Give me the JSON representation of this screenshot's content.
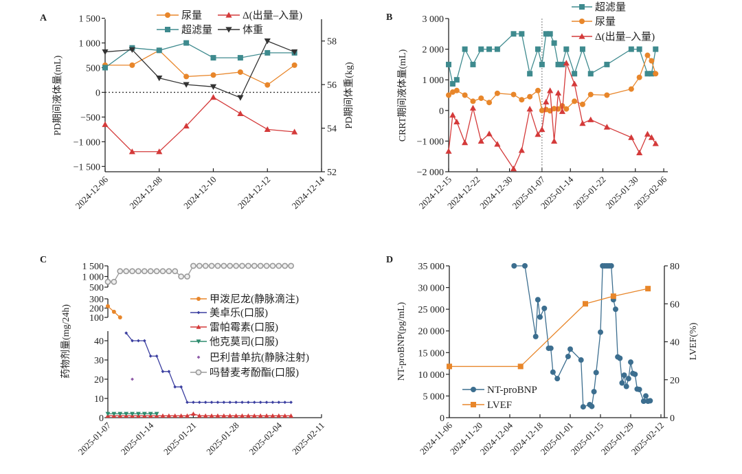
{
  "chart_data": [
    {
      "id": "A",
      "panel_label": "A",
      "type": "line",
      "ylabel": "PD期间液体量(mL)",
      "ylabel_right": "PD期间体重(kg)",
      "xlim": [
        "2024-12-06",
        "2024-12-14"
      ],
      "xticks": [
        "2024-12-06",
        "2024-12-08",
        "2024-12-10",
        "2024-12-12",
        "2024-12-14"
      ],
      "ylim": [
        -1607,
        1480
      ],
      "yticks": [
        1500,
        1000,
        500,
        0,
        -500,
        -1000,
        -1500
      ],
      "ytick_labels": [
        "1 500",
        "1 000",
        "500",
        "0",
        "−500",
        "−1 000",
        "−1 500"
      ],
      "ylim_right": [
        52,
        59
      ],
      "yticks_right": [
        52,
        54,
        56,
        58
      ],
      "ytick_right_labels": [
        "52",
        "54",
        "56",
        "58"
      ],
      "zero_line": true,
      "legend_position": "top",
      "series": [
        {
          "name": "尿量",
          "color": "#E8862A",
          "marker": "circle",
          "axis": "left",
          "x": [
            "2024-12-06",
            "2024-12-07",
            "2024-12-08",
            "2024-12-09",
            "2024-12-10",
            "2024-12-11",
            "2024-12-12",
            "2024-12-13"
          ],
          "y": [
            550,
            550,
            850,
            320,
            350,
            410,
            150,
            550
          ]
        },
        {
          "name": "Δ(出量–入量)",
          "color": "#D43A3A",
          "marker": "triangle-up",
          "axis": "left",
          "x": [
            "2024-12-06",
            "2024-12-07",
            "2024-12-08",
            "2024-12-09",
            "2024-12-10",
            "2024-12-11",
            "2024-12-12",
            "2024-12-13"
          ],
          "y": [
            -650,
            -1200,
            -1200,
            -680,
            -100,
            -430,
            -750,
            -800
          ]
        },
        {
          "name": "超滤量",
          "color": "#3E8A8E",
          "marker": "square",
          "axis": "left",
          "x": [
            "2024-12-06",
            "2024-12-07",
            "2024-12-08",
            "2024-12-09",
            "2024-12-10",
            "2024-12-11",
            "2024-12-12",
            "2024-12-13"
          ],
          "y": [
            500,
            900,
            850,
            1000,
            700,
            700,
            800,
            800
          ]
        },
        {
          "name": "体重",
          "color": "#333333",
          "marker": "triangle-down",
          "axis": "right",
          "x": [
            "2024-12-06",
            "2024-12-07",
            "2024-12-08",
            "2024-12-09",
            "2024-12-10",
            "2024-12-11",
            "2024-12-12",
            "2024-12-13"
          ],
          "y": [
            57.5,
            57.6,
            56.3,
            56.0,
            55.9,
            55.4,
            58.0,
            57.5
          ]
        }
      ]
    },
    {
      "id": "B",
      "panel_label": "B",
      "type": "line",
      "ylabel": "CRRT期间液体量(mL)",
      "xlim": [
        "2024-12-15",
        "2025-02-07"
      ],
      "xticks": [
        "2024-12-15",
        "2024-12-22",
        "2024-12-30",
        "2025-01-07",
        "2025-01-14",
        "2025-01-22",
        "2025-01-30",
        "2025-02-06"
      ],
      "ylim": [
        -2000,
        3000
      ],
      "yticks": [
        3000,
        2000,
        1000,
        0,
        -1000,
        -2000
      ],
      "ytick_labels": [
        "3 000",
        "2 000",
        "1 000",
        "0",
        "−1 000",
        "−2 000"
      ],
      "vline": "2025-01-07",
      "legend_position": "top-right",
      "series": [
        {
          "name": "超滤量",
          "color": "#3E8A8E",
          "marker": "square",
          "x": [
            "2024-12-15",
            "2024-12-16",
            "2024-12-17",
            "2024-12-19",
            "2024-12-21",
            "2024-12-23",
            "2024-12-25",
            "2024-12-27",
            "2024-12-31",
            "2025-01-02",
            "2025-01-04",
            "2025-01-06",
            "2025-01-07",
            "2025-01-08",
            "2025-01-09",
            "2025-01-10",
            "2025-01-11",
            "2025-01-12",
            "2025-01-13",
            "2025-01-15",
            "2025-01-17",
            "2025-01-19",
            "2025-01-23",
            "2025-01-29",
            "2025-01-31",
            "2025-02-02",
            "2025-02-03",
            "2025-02-04"
          ],
          "y": [
            1500,
            870,
            1000,
            2000,
            1500,
            2000,
            2000,
            2000,
            2500,
            2500,
            1200,
            2000,
            1500,
            2500,
            2500,
            2200,
            1500,
            1500,
            2000,
            1200,
            2000,
            1200,
            1500,
            2000,
            2000,
            1200,
            1200,
            2000
          ]
        },
        {
          "name": "尿量",
          "color": "#E8862A",
          "marker": "circle",
          "x": [
            "2024-12-15",
            "2024-12-16",
            "2024-12-17",
            "2024-12-19",
            "2024-12-21",
            "2024-12-23",
            "2024-12-25",
            "2024-12-27",
            "2024-12-31",
            "2025-01-02",
            "2025-01-04",
            "2025-01-06",
            "2025-01-07",
            "2025-01-08",
            "2025-01-09",
            "2025-01-10",
            "2025-01-11",
            "2025-01-12",
            "2025-01-13",
            "2025-01-15",
            "2025-01-17",
            "2025-01-19",
            "2025-01-23",
            "2025-01-29",
            "2025-01-31",
            "2025-02-02",
            "2025-02-03",
            "2025-02-04"
          ],
          "y": [
            500,
            600,
            650,
            500,
            300,
            400,
            260,
            560,
            520,
            350,
            450,
            650,
            0,
            30,
            -10,
            60,
            50,
            150,
            50,
            300,
            200,
            520,
            500,
            700,
            1080,
            1800,
            1620,
            1200
          ]
        },
        {
          "name": "Δ(出量–入量)",
          "color": "#D43A3A",
          "marker": "triangle-up",
          "x": [
            "2024-12-15",
            "2024-12-16",
            "2024-12-17",
            "2024-12-19",
            "2024-12-21",
            "2024-12-23",
            "2024-12-25",
            "2024-12-27",
            "2024-12-31",
            "2025-01-02",
            "2025-01-04",
            "2025-01-06",
            "2025-01-07",
            "2025-01-08",
            "2025-01-09",
            "2025-01-10",
            "2025-01-11",
            "2025-01-12",
            "2025-01-13",
            "2025-01-15",
            "2025-01-17",
            "2025-01-19",
            "2025-01-23",
            "2025-01-29",
            "2025-01-31",
            "2025-02-02",
            "2025-02-03",
            "2025-02-04"
          ],
          "y": [
            -1330,
            -150,
            -370,
            -1050,
            80,
            -1000,
            -760,
            -1100,
            -1900,
            -1300,
            50,
            -780,
            -620,
            280,
            650,
            -1000,
            570,
            -30,
            1550,
            870,
            -420,
            -300,
            -540,
            -880,
            -1380,
            -770,
            -880,
            -1080
          ]
        }
      ]
    },
    {
      "id": "C",
      "panel_label": "C",
      "type": "line",
      "ylabel": "药物剂量(mg/24h)",
      "xlim": [
        "2025-01-07",
        "2025-02-11"
      ],
      "xticks": [
        "2025-01-07",
        "2025-01-14",
        "2025-01-21",
        "2025-01-28",
        "2025-02-04",
        "2025-02-11"
      ],
      "broken_y_segments": [
        {
          "range": [
            0,
            45
          ],
          "ticks": [
            0,
            10,
            20,
            30,
            40
          ],
          "labels": [
            "0",
            "10",
            "20",
            "30",
            "40"
          ]
        },
        {
          "range": [
            100,
            300
          ],
          "ticks": [
            100,
            200,
            300
          ],
          "labels": [
            "100",
            "200",
            "300"
          ]
        },
        {
          "range": [
            500,
            1500
          ],
          "ticks": [
            500,
            1000,
            1500
          ],
          "labels": [
            "500",
            "1 000",
            "1 500"
          ]
        }
      ],
      "legend_position": "right",
      "series": [
        {
          "name": "甲泼尼龙(静脉滴注)",
          "color": "#E8862A",
          "marker": "circle",
          "x": [
            "2025-01-07",
            "2025-01-08",
            "2025-01-09"
          ],
          "y": [
            220,
            160,
            100
          ]
        },
        {
          "name": "美卓乐(口服)",
          "color": "#3B3FA0",
          "marker": "diamond",
          "x": [
            "2025-01-10",
            "2025-01-11",
            "2025-01-12",
            "2025-01-13",
            "2025-01-14",
            "2025-01-15",
            "2025-01-16",
            "2025-01-17",
            "2025-01-18",
            "2025-01-19",
            "2025-01-20",
            "2025-01-21",
            "2025-01-22",
            "2025-01-23",
            "2025-01-24",
            "2025-01-25",
            "2025-01-26",
            "2025-01-27",
            "2025-01-28",
            "2025-01-29",
            "2025-01-30",
            "2025-01-31",
            "2025-02-01",
            "2025-02-02",
            "2025-02-03",
            "2025-02-04",
            "2025-02-05",
            "2025-02-06"
          ],
          "y": [
            44,
            40,
            40,
            40,
            32,
            32,
            24,
            24,
            16,
            16,
            8,
            8,
            8,
            8,
            8,
            8,
            8,
            8,
            8,
            8,
            8,
            8,
            8,
            8,
            8,
            8,
            8,
            8
          ]
        },
        {
          "name": "雷帕霉素(口服)",
          "color": "#D43A3A",
          "marker": "triangle-up",
          "x": [
            "2025-01-07",
            "2025-01-08",
            "2025-01-09",
            "2025-01-10",
            "2025-01-11",
            "2025-01-12",
            "2025-01-13",
            "2025-01-14",
            "2025-01-15",
            "2025-01-16",
            "2025-01-17",
            "2025-01-18",
            "2025-01-19",
            "2025-01-20",
            "2025-01-21",
            "2025-01-22",
            "2025-01-23",
            "2025-01-24",
            "2025-01-25",
            "2025-01-26",
            "2025-01-27",
            "2025-01-28",
            "2025-01-29",
            "2025-01-30",
            "2025-01-31",
            "2025-02-01",
            "2025-02-02",
            "2025-02-03",
            "2025-02-04",
            "2025-02-05",
            "2025-02-06"
          ],
          "y": [
            1,
            1,
            1,
            1,
            1,
            1,
            1,
            1,
            1,
            1,
            1,
            1,
            1,
            1,
            2,
            1,
            1,
            1,
            1,
            1,
            1,
            1,
            1,
            1,
            1,
            1,
            1,
            1,
            1,
            1,
            1
          ]
        },
        {
          "name": "他克莫司(口服)",
          "color": "#2E8B6E",
          "marker": "triangle-down",
          "x": [
            "2025-01-07",
            "2025-01-08",
            "2025-01-09",
            "2025-01-10",
            "2025-01-11",
            "2025-01-12",
            "2025-01-13",
            "2025-01-14",
            "2025-01-15"
          ],
          "y": [
            2,
            2,
            2,
            2,
            2,
            2,
            2,
            2,
            2
          ]
        },
        {
          "name": "巴利昔单抗(静脉注射)",
          "color": "#8E5AA8",
          "marker": "diamond",
          "no_line": true,
          "x": [
            "2025-01-11"
          ],
          "y": [
            20
          ]
        },
        {
          "name": "吗替麦考酚酯(口服)",
          "color": "#9A9A9A",
          "marker": "open-circle",
          "x": [
            "2025-01-07",
            "2025-01-08",
            "2025-01-09",
            "2025-01-10",
            "2025-01-11",
            "2025-01-12",
            "2025-01-13",
            "2025-01-14",
            "2025-01-15",
            "2025-01-16",
            "2025-01-17",
            "2025-01-18",
            "2025-01-19",
            "2025-01-20",
            "2025-01-21",
            "2025-01-22",
            "2025-01-23",
            "2025-01-24",
            "2025-01-25",
            "2025-01-26",
            "2025-01-27",
            "2025-01-28",
            "2025-01-29",
            "2025-01-30",
            "2025-01-31",
            "2025-02-01",
            "2025-02-02",
            "2025-02-03",
            "2025-02-04",
            "2025-02-05",
            "2025-02-06"
          ],
          "y": [
            750,
            750,
            1250,
            1250,
            1250,
            1250,
            1250,
            1250,
            1250,
            1250,
            1250,
            1250,
            1000,
            1000,
            1500,
            1500,
            1500,
            1500,
            1500,
            1500,
            1500,
            1500,
            1500,
            1500,
            1500,
            1500,
            1500,
            1500,
            1500,
            1500,
            1500
          ]
        }
      ]
    },
    {
      "id": "D",
      "panel_label": "D",
      "type": "line",
      "ylabel": "NT-proBNP(pg/mL)",
      "ylabel_right": "LVEF(%)",
      "xlim": [
        "2024-11-06",
        "2025-02-12"
      ],
      "xticks": [
        "2024-11-06",
        "2024-11-20",
        "2024-12-04",
        "2024-12-18",
        "2025-01-01",
        "2025-01-15",
        "2025-01-29",
        "2025-02-12"
      ],
      "ylim": [
        0,
        35000
      ],
      "yticks": [
        35000,
        30000,
        25000,
        20000,
        15000,
        10000,
        5000,
        0
      ],
      "ytick_labels": [
        "35 000",
        "30 000",
        "25 000",
        "20 000",
        "15 000",
        "10 000",
        "5 000",
        "0"
      ],
      "ylim_right": [
        0,
        80
      ],
      "yticks_right": [
        0,
        20,
        40,
        60,
        80
      ],
      "ytick_right_labels": [
        "0",
        "20",
        "40",
        "60",
        "80"
      ],
      "legend_position": "bottom-left",
      "series": [
        {
          "name": "NT-proBNP",
          "color": "#3C6E8F",
          "marker": "circle",
          "axis": "left",
          "x": [
            "2024-12-06",
            "2024-12-11",
            "2024-12-16",
            "2024-12-17",
            "2024-12-18",
            "2024-12-20",
            "2024-12-22",
            "2024-12-23",
            "2024-12-24",
            "2024-12-26",
            "2024-12-31",
            "2025-01-01",
            "2025-01-06",
            "2025-01-07",
            "2025-01-10",
            "2025-01-11",
            "2025-01-12",
            "2025-01-13",
            "2025-01-15",
            "2025-01-16",
            "2025-01-17",
            "2025-01-18",
            "2025-01-19",
            "2025-01-20",
            "2025-01-21",
            "2025-01-22",
            "2025-01-23",
            "2025-01-24",
            "2025-01-25",
            "2025-01-26",
            "2025-01-27",
            "2025-01-28",
            "2025-01-29",
            "2025-01-30",
            "2025-01-31",
            "2025-02-01",
            "2025-02-02",
            "2025-02-04",
            "2025-02-05",
            "2025-02-06",
            "2025-02-07"
          ],
          "y": [
            35000,
            35000,
            18700,
            27200,
            23200,
            25200,
            16000,
            16000,
            10500,
            9000,
            14100,
            15800,
            13300,
            2500,
            3000,
            2600,
            6000,
            10400,
            19700,
            35000,
            35000,
            35000,
            35000,
            35000,
            27200,
            25000,
            14000,
            13700,
            8000,
            9800,
            7200,
            9000,
            12800,
            10200,
            10000,
            6600,
            6500,
            3800,
            5000,
            3800,
            3900
          ]
        },
        {
          "name": "LVEF",
          "color": "#E8862A",
          "marker": "square",
          "axis": "right",
          "x": [
            "2024-11-06",
            "2024-12-09",
            "2025-01-08",
            "2025-01-21",
            "2025-02-06"
          ],
          "y": [
            27,
            27,
            60,
            64,
            68
          ]
        }
      ]
    }
  ]
}
